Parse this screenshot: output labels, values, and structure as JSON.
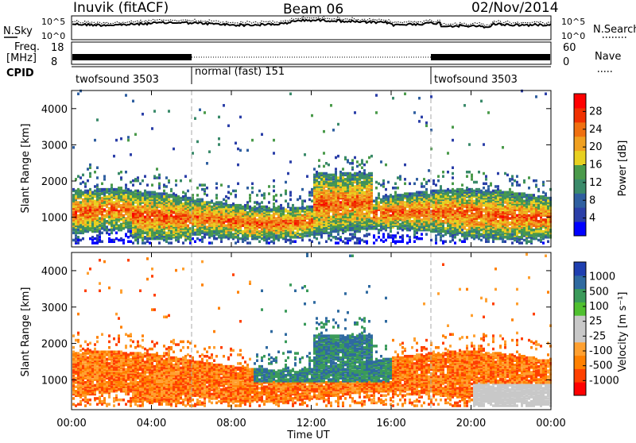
{
  "header": {
    "station": "Inuvik (fitACF)",
    "beam": "Beam 06",
    "date": "02/Nov/2014"
  },
  "top_panels": {
    "nsky_label": "N.Sky",
    "nsky_ticks": [
      "10^5",
      "10^0"
    ],
    "nsearch_label": "N.Search",
    "freq_label_line1": "Freq.",
    "freq_label_line2": "[MHz]",
    "freq_ticks": [
      "18",
      "8"
    ],
    "nave_label": "Nave",
    "nave_ticks": [
      "60",
      "0"
    ],
    "cpid_label": "CPID",
    "cpid_segments": [
      {
        "label": "twofsound 3503",
        "start_hour": 0,
        "end_hour": 6
      },
      {
        "label": "normal (fast) 151",
        "start_hour": 6,
        "end_hour": 18
      },
      {
        "label": "twofsound 3503",
        "start_hour": 18,
        "end_hour": 24
      }
    ]
  },
  "colors": {
    "power_scale": [
      "#0000ff",
      "#2b3fa8",
      "#2f5fa0",
      "#3a8a6a",
      "#4a9a4a",
      "#e8d020",
      "#f0a020",
      "#f07010",
      "#f03000",
      "#ff0000"
    ],
    "velocity_scale": [
      "#ff0000",
      "#ff4000",
      "#ff8000",
      "#ffa030",
      "#c8c8c8",
      "#c8c8c8",
      "#50c030",
      "#3a9a5a",
      "#2f6aa0",
      "#1f3fb0"
    ]
  },
  "chart_data": [
    {
      "type": "heatmap",
      "title": "",
      "xlabel": "Time UT",
      "ylabel": "Slant Range [km]",
      "x_ticks": [
        "00:00",
        "04:00",
        "08:00",
        "12:00",
        "16:00",
        "20:00",
        "00:00"
      ],
      "y_ticks": [
        1000,
        2000,
        3000,
        4000
      ],
      "xlim_hours": [
        0,
        24
      ],
      "ylim_km": [
        180,
        4500
      ],
      "colorbar": {
        "label": "Power [dB]",
        "ticks": [
          "4",
          "8",
          "12",
          "16",
          "20",
          "24",
          "28"
        ],
        "range": [
          0,
          30
        ]
      },
      "dominant_band": {
        "hours": [
          0,
          24
        ],
        "range_km": [
          500,
          1800
        ],
        "typical_value_db": 24
      }
    },
    {
      "type": "heatmap",
      "title": "",
      "xlabel": "Time UT",
      "ylabel": "Slant Range [km]",
      "x_ticks": [
        "00:00",
        "04:00",
        "08:00",
        "12:00",
        "16:00",
        "20:00",
        "00:00"
      ],
      "y_ticks": [
        1000,
        2000,
        3000,
        4000
      ],
      "xlim_hours": [
        0,
        24
      ],
      "ylim_km": [
        180,
        4500
      ],
      "colorbar": {
        "label": "Velocity [m s⁻¹]",
        "ticks": [
          "1000",
          "500",
          "100",
          "25",
          "-25",
          "-100",
          "-500",
          "-1000"
        ]
      },
      "dominant_band": {
        "hours": [
          0,
          24
        ],
        "range_km": [
          500,
          1800
        ],
        "typical_value_ms": -300
      }
    }
  ],
  "x_axis_title": "Time UT"
}
